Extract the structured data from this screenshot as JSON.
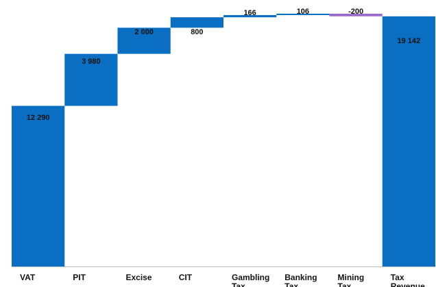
{
  "chart_data": {
    "type": "bar",
    "variant": "waterfall",
    "title": "",
    "xlabel": "",
    "ylabel": "",
    "ylim": [
      0,
      19500
    ],
    "grid": false,
    "legend": "none",
    "categories": [
      [
        "VAT"
      ],
      [
        "PIT"
      ],
      [
        "Excise"
      ],
      [
        "CIT"
      ],
      [
        "Gambling",
        "Tax"
      ],
      [
        "Banking",
        "Tax"
      ],
      [
        "Mining",
        "Tax"
      ],
      [
        "Tax",
        "Revenue"
      ]
    ],
    "values": [
      12290,
      3980,
      2000,
      800,
      166,
      106,
      -200,
      19142
    ],
    "labels": [
      "12 290",
      "3 980",
      "2 000",
      "800",
      "166",
      "106",
      "-200",
      "19 142"
    ],
    "kinds": [
      "increase",
      "increase",
      "increase",
      "increase",
      "increase",
      "increase",
      "decrease",
      "total"
    ],
    "colors": {
      "increase": "#0a6fc2",
      "decrease": "#9b6bc8",
      "total": "#0a6fc2",
      "axis": "#bdbdbd"
    }
  }
}
